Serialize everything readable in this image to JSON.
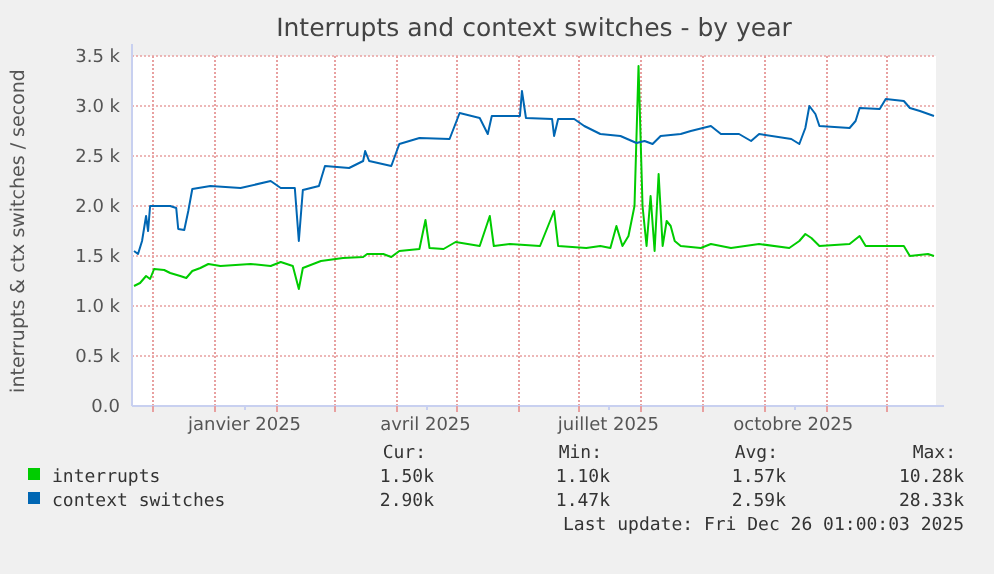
{
  "chart_data": {
    "type": "line",
    "title": "Interrupts and context switches - by year",
    "ylabel": "interrupts & ctx switches / second",
    "xlim": [
      "2024-11-21",
      "2025-12-26"
    ],
    "xticks": [
      {
        "value": "2024-12-01",
        "label": null
      },
      {
        "value": "2025-01-01",
        "label": null
      },
      {
        "value": "2025-01-16",
        "label": "janvier 2025"
      },
      {
        "value": "2025-02-01",
        "label": null
      },
      {
        "value": "2025-03-01",
        "label": null
      },
      {
        "value": "2025-04-01",
        "label": null
      },
      {
        "value": "2025-04-16",
        "label": "avril 2025"
      },
      {
        "value": "2025-05-01",
        "label": null
      },
      {
        "value": "2025-06-01",
        "label": null
      },
      {
        "value": "2025-07-01",
        "label": null
      },
      {
        "value": "2025-07-16",
        "label": "juillet 2025"
      },
      {
        "value": "2025-08-01",
        "label": null
      },
      {
        "value": "2025-09-01",
        "label": null
      },
      {
        "value": "2025-10-01",
        "label": null
      },
      {
        "value": "2025-10-16",
        "label": "octobre 2025"
      },
      {
        "value": "2025-11-01",
        "label": null
      },
      {
        "value": "2025-12-01",
        "label": null
      }
    ],
    "ylim": [
      0,
      3500
    ],
    "yticks": [
      {
        "value": 0,
        "label": "0.0"
      },
      {
        "value": 500,
        "label": "0.5 k"
      },
      {
        "value": 1000,
        "label": "1.0 k"
      },
      {
        "value": 1500,
        "label": "1.5 k"
      },
      {
        "value": 2000,
        "label": "2.0 k"
      },
      {
        "value": 2500,
        "label": "2.5 k"
      },
      {
        "value": 3000,
        "label": "3.0 k"
      },
      {
        "value": 3500,
        "label": "3.5 k"
      }
    ],
    "grid": true,
    "legend": "bottom",
    "marker": "none",
    "line_style": "solid",
    "series": [
      {
        "name": "interrupts",
        "color": "#00cc00",
        "x": [
          "2024-11-22",
          "2024-11-25",
          "2024-11-28",
          "2024-11-30",
          "2024-12-02",
          "2024-12-07",
          "2024-12-10",
          "2024-12-15",
          "2024-12-18",
          "2024-12-21",
          "2024-12-25",
          "2024-12-29",
          "2025-01-04",
          "2025-01-19",
          "2025-01-29",
          "2025-02-03",
          "2025-02-09",
          "2025-02-12",
          "2025-02-14",
          "2025-02-23",
          "2025-03-06",
          "2025-03-16",
          "2025-03-18",
          "2025-03-26",
          "2025-03-30",
          "2025-04-03",
          "2025-04-13",
          "2025-04-16",
          "2025-04-18",
          "2025-04-25",
          "2025-05-01",
          "2025-05-13",
          "2025-05-18",
          "2025-05-20",
          "2025-05-28",
          "2025-06-12",
          "2025-06-19",
          "2025-06-21",
          "2025-07-05",
          "2025-07-12",
          "2025-07-17",
          "2025-07-20",
          "2025-07-23",
          "2025-07-26",
          "2025-07-29",
          "2025-07-31",
          "2025-08-02",
          "2025-08-04",
          "2025-08-06",
          "2025-08-08",
          "2025-08-10",
          "2025-08-12",
          "2025-08-14",
          "2025-08-16",
          "2025-08-18",
          "2025-08-21",
          "2025-08-31",
          "2025-09-05",
          "2025-09-15",
          "2025-09-29",
          "2025-10-14",
          "2025-10-19",
          "2025-10-22",
          "2025-10-25",
          "2025-10-29",
          "2025-11-13",
          "2025-11-18",
          "2025-11-21",
          "2025-12-03",
          "2025-12-10",
          "2025-12-13",
          "2025-12-22",
          "2025-12-25"
        ],
        "values": [
          1200,
          1230,
          1300,
          1270,
          1370,
          1360,
          1330,
          1300,
          1280,
          1350,
          1380,
          1420,
          1400,
          1420,
          1400,
          1440,
          1400,
          1170,
          1380,
          1450,
          1480,
          1490,
          1520,
          1520,
          1490,
          1550,
          1570,
          1860,
          1580,
          1570,
          1640,
          1600,
          1900,
          1600,
          1620,
          1600,
          1950,
          1600,
          1580,
          1600,
          1580,
          1800,
          1600,
          1700,
          2000,
          3400,
          2000,
          1600,
          2100,
          1550,
          2320,
          1600,
          1850,
          1800,
          1650,
          1600,
          1580,
          1620,
          1580,
          1620,
          1580,
          1650,
          1720,
          1680,
          1600,
          1620,
          1700,
          1600,
          1600,
          1600,
          1500,
          1520,
          1500
        ]
      },
      {
        "name": "context switches",
        "color": "#0066b3",
        "x": [
          "2024-11-22",
          "2024-11-24",
          "2024-11-26",
          "2024-11-28",
          "2024-11-29",
          "2024-11-30",
          "2024-12-10",
          "2024-12-13",
          "2024-12-14",
          "2024-12-17",
          "2024-12-19",
          "2024-12-21",
          "2024-12-30",
          "2025-01-14",
          "2025-01-29",
          "2025-02-03",
          "2025-02-10",
          "2025-02-12",
          "2025-02-14",
          "2025-02-22",
          "2025-02-25",
          "2025-03-09",
          "2025-03-16",
          "2025-03-17",
          "2025-03-19",
          "2025-03-30",
          "2025-04-03",
          "2025-04-13",
          "2025-04-28",
          "2025-05-03",
          "2025-05-13",
          "2025-05-17",
          "2025-05-19",
          "2025-06-02",
          "2025-06-03",
          "2025-06-05",
          "2025-06-18",
          "2025-06-19",
          "2025-06-21",
          "2025-06-29",
          "2025-07-04",
          "2025-07-12",
          "2025-07-22",
          "2025-07-30",
          "2025-08-03",
          "2025-08-07",
          "2025-08-11",
          "2025-08-21",
          "2025-08-26",
          "2025-09-05",
          "2025-09-10",
          "2025-09-19",
          "2025-09-25",
          "2025-09-29",
          "2025-10-15",
          "2025-10-19",
          "2025-10-22",
          "2025-10-24",
          "2025-10-27",
          "2025-10-29",
          "2025-11-13",
          "2025-11-16",
          "2025-11-18",
          "2025-11-28",
          "2025-12-01",
          "2025-12-10",
          "2025-12-13",
          "2025-12-18",
          "2025-12-25"
        ],
        "values": [
          1550,
          1520,
          1650,
          1900,
          1750,
          2000,
          2000,
          1980,
          1770,
          1760,
          1950,
          2170,
          2200,
          2180,
          2250,
          2180,
          2180,
          1650,
          2160,
          2200,
          2400,
          2380,
          2450,
          2550,
          2450,
          2400,
          2620,
          2680,
          2670,
          2930,
          2880,
          2720,
          2900,
          2900,
          3150,
          2880,
          2870,
          2700,
          2870,
          2870,
          2800,
          2720,
          2700,
          2630,
          2650,
          2620,
          2700,
          2720,
          2750,
          2800,
          2720,
          2720,
          2650,
          2720,
          2670,
          2620,
          2780,
          3000,
          2920,
          2800,
          2780,
          2850,
          2980,
          2970,
          3070,
          3050,
          2980,
          2950,
          2900
        ]
      }
    ],
    "annotations": [
      "Cur:",
      "Min:",
      "Avg:",
      "Max:",
      "1.50k",
      "1.10k",
      "1.57k",
      "10.28k",
      "2.90k",
      "1.47k",
      "2.59k",
      "28.33k",
      "Last update: Fri Dec 26 01:00:03 2025"
    ]
  }
}
